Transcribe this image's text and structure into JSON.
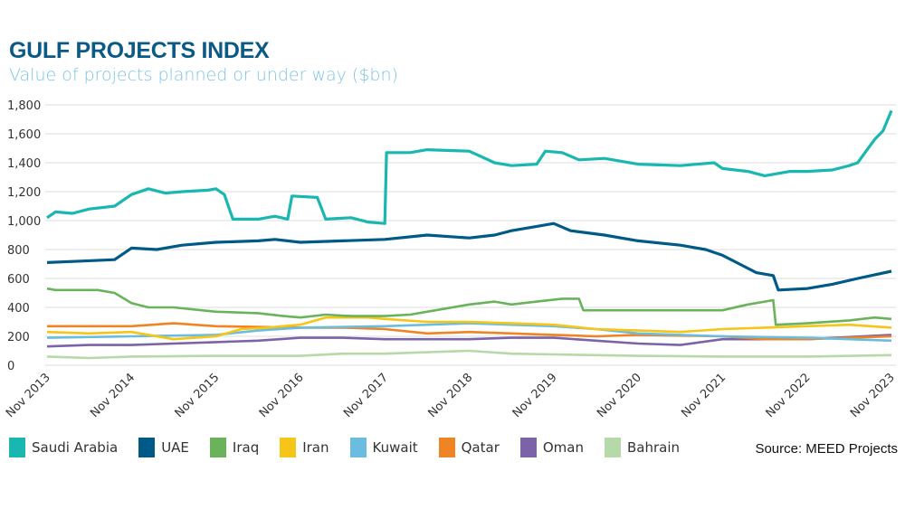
{
  "chart_data": {
    "type": "line",
    "title": "GULF PROJECTS INDEX",
    "subtitle": "Value of projects planned or under way ($bn)",
    "ylim": [
      0,
      1800
    ],
    "yticks": [
      0,
      200,
      400,
      600,
      800,
      1000,
      1200,
      1400,
      1600,
      1800
    ],
    "ytick_labels": [
      "0",
      "200",
      "400",
      "600",
      "800",
      "1,000",
      "1,200",
      "1,400",
      "1,600",
      "1,800"
    ],
    "xticks": [
      "Nov 2013",
      "Nov 2014",
      "Nov 2015",
      "Nov 2016",
      "Nov 2017",
      "Nov 2018",
      "Nov 2019",
      "Nov 2020",
      "Nov 2021",
      "Nov 2022",
      "Nov 2023"
    ],
    "x_unit": "years since Nov 2013",
    "grid": true,
    "legend_position": "bottom",
    "source": "Source: MEED Projects",
    "series": [
      {
        "name": "Bahrain",
        "color": "#b5d9a8",
        "points": [
          [
            0,
            60
          ],
          [
            0.5,
            50
          ],
          [
            1,
            60
          ],
          [
            2,
            65
          ],
          [
            3,
            65
          ],
          [
            3.5,
            80
          ],
          [
            4,
            80
          ],
          [
            4.5,
            90
          ],
          [
            5,
            100
          ],
          [
            5.5,
            80
          ],
          [
            6,
            75
          ],
          [
            6.5,
            70
          ],
          [
            7,
            65
          ],
          [
            8,
            60
          ],
          [
            9,
            60
          ],
          [
            10,
            70
          ]
        ]
      },
      {
        "name": "Oman",
        "color": "#7b63a8",
        "points": [
          [
            0,
            130
          ],
          [
            0.5,
            140
          ],
          [
            1,
            140
          ],
          [
            1.5,
            150
          ],
          [
            2,
            160
          ],
          [
            2.5,
            170
          ],
          [
            3,
            190
          ],
          [
            3.5,
            190
          ],
          [
            4,
            180
          ],
          [
            5,
            180
          ],
          [
            5.5,
            190
          ],
          [
            6,
            190
          ],
          [
            6.5,
            170
          ],
          [
            7,
            150
          ],
          [
            7.5,
            140
          ],
          [
            8,
            180
          ],
          [
            9,
            180
          ],
          [
            10,
            210
          ]
        ]
      },
      {
        "name": "Qatar",
        "color": "#ee8424",
        "points": [
          [
            0,
            270
          ],
          [
            1,
            270
          ],
          [
            1.5,
            290
          ],
          [
            2,
            270
          ],
          [
            3,
            260
          ],
          [
            3.5,
            260
          ],
          [
            4,
            250
          ],
          [
            4.5,
            220
          ],
          [
            5,
            230
          ],
          [
            6,
            210
          ],
          [
            6.5,
            200
          ],
          [
            7,
            210
          ],
          [
            8,
            200
          ],
          [
            8.5,
            180
          ],
          [
            9,
            180
          ],
          [
            10,
            200
          ]
        ]
      },
      {
        "name": "Kuwait",
        "color": "#6bbde0",
        "points": [
          [
            0,
            190
          ],
          [
            1,
            200
          ],
          [
            2,
            210
          ],
          [
            2.5,
            240
          ],
          [
            3,
            260
          ],
          [
            4,
            270
          ],
          [
            4.5,
            280
          ],
          [
            5,
            290
          ],
          [
            5.5,
            280
          ],
          [
            6,
            270
          ],
          [
            6.5,
            250
          ],
          [
            7,
            220
          ],
          [
            8,
            200
          ],
          [
            9,
            190
          ],
          [
            10,
            170
          ]
        ]
      },
      {
        "name": "Iran",
        "color": "#f5c518",
        "points": [
          [
            0,
            230
          ],
          [
            0.5,
            220
          ],
          [
            1,
            230
          ],
          [
            1.5,
            180
          ],
          [
            2,
            200
          ],
          [
            2.3,
            250
          ],
          [
            2.6,
            260
          ],
          [
            3,
            280
          ],
          [
            3.3,
            330
          ],
          [
            3.8,
            330
          ],
          [
            4,
            320
          ],
          [
            4.5,
            300
          ],
          [
            5,
            300
          ],
          [
            5.5,
            290
          ],
          [
            6,
            280
          ],
          [
            6.5,
            250
          ],
          [
            7,
            240
          ],
          [
            7.5,
            230
          ],
          [
            8,
            250
          ],
          [
            8.5,
            260
          ],
          [
            9,
            270
          ],
          [
            9.5,
            280
          ],
          [
            10,
            260
          ]
        ]
      },
      {
        "name": "Iraq",
        "color": "#6ab35a",
        "points": [
          [
            0,
            530
          ],
          [
            0.1,
            520
          ],
          [
            0.6,
            520
          ],
          [
            0.8,
            500
          ],
          [
            1,
            430
          ],
          [
            1.2,
            400
          ],
          [
            1.5,
            400
          ],
          [
            2,
            370
          ],
          [
            2.5,
            360
          ],
          [
            2.8,
            340
          ],
          [
            3,
            330
          ],
          [
            3.3,
            350
          ],
          [
            3.6,
            340
          ],
          [
            4,
            340
          ],
          [
            4.3,
            350
          ],
          [
            4.6,
            380
          ],
          [
            5,
            420
          ],
          [
            5.3,
            440
          ],
          [
            5.5,
            420
          ],
          [
            5.8,
            440
          ],
          [
            6.1,
            460
          ],
          [
            6.3,
            460
          ],
          [
            6.35,
            380
          ],
          [
            7,
            380
          ],
          [
            7.5,
            380
          ],
          [
            8,
            380
          ],
          [
            8.3,
            420
          ],
          [
            8.6,
            450
          ],
          [
            8.63,
            280
          ],
          [
            9,
            290
          ],
          [
            9.5,
            310
          ],
          [
            9.8,
            330
          ],
          [
            10,
            320
          ]
        ]
      },
      {
        "name": "UAE",
        "color": "#005a87",
        "points": [
          [
            0,
            710
          ],
          [
            0.4,
            720
          ],
          [
            0.8,
            730
          ],
          [
            1,
            810
          ],
          [
            1.3,
            800
          ],
          [
            1.6,
            830
          ],
          [
            2,
            850
          ],
          [
            2.5,
            860
          ],
          [
            2.7,
            870
          ],
          [
            3,
            850
          ],
          [
            3.5,
            860
          ],
          [
            4,
            870
          ],
          [
            4.5,
            900
          ],
          [
            5,
            880
          ],
          [
            5.3,
            900
          ],
          [
            5.5,
            930
          ],
          [
            5.8,
            960
          ],
          [
            6,
            980
          ],
          [
            6.2,
            930
          ],
          [
            6.6,
            900
          ],
          [
            7,
            860
          ],
          [
            7.5,
            830
          ],
          [
            7.8,
            800
          ],
          [
            8,
            760
          ],
          [
            8.2,
            700
          ],
          [
            8.4,
            640
          ],
          [
            8.6,
            620
          ],
          [
            8.66,
            520
          ],
          [
            9,
            530
          ],
          [
            9.3,
            560
          ],
          [
            9.6,
            600
          ],
          [
            10,
            650
          ]
        ]
      },
      {
        "name": "Saudi Arabia",
        "color": "#1ab7b0",
        "points": [
          [
            0,
            1020
          ],
          [
            0.1,
            1060
          ],
          [
            0.3,
            1050
          ],
          [
            0.5,
            1080
          ],
          [
            0.8,
            1100
          ],
          [
            1,
            1180
          ],
          [
            1.2,
            1220
          ],
          [
            1.4,
            1190
          ],
          [
            1.6,
            1200
          ],
          [
            1.9,
            1210
          ],
          [
            2,
            1220
          ],
          [
            2.1,
            1180
          ],
          [
            2.2,
            1010
          ],
          [
            2.5,
            1010
          ],
          [
            2.7,
            1030
          ],
          [
            2.85,
            1010
          ],
          [
            2.9,
            1170
          ],
          [
            3.2,
            1160
          ],
          [
            3.3,
            1010
          ],
          [
            3.6,
            1020
          ],
          [
            3.8,
            990
          ],
          [
            4,
            980
          ],
          [
            4.02,
            1470
          ],
          [
            4.3,
            1470
          ],
          [
            4.5,
            1490
          ],
          [
            5,
            1480
          ],
          [
            5.3,
            1400
          ],
          [
            5.5,
            1380
          ],
          [
            5.8,
            1390
          ],
          [
            5.9,
            1480
          ],
          [
            6.1,
            1470
          ],
          [
            6.3,
            1420
          ],
          [
            6.6,
            1430
          ],
          [
            7,
            1390
          ],
          [
            7.5,
            1380
          ],
          [
            7.9,
            1400
          ],
          [
            8,
            1360
          ],
          [
            8.3,
            1340
          ],
          [
            8.5,
            1310
          ],
          [
            8.8,
            1340
          ],
          [
            9,
            1340
          ],
          [
            9.3,
            1350
          ],
          [
            9.5,
            1380
          ],
          [
            9.6,
            1400
          ],
          [
            9.7,
            1480
          ],
          [
            9.8,
            1560
          ],
          [
            9.9,
            1620
          ],
          [
            10,
            1760
          ]
        ]
      }
    ],
    "legend": [
      {
        "name": "Saudi Arabia",
        "color": "#1ab7b0"
      },
      {
        "name": "UAE",
        "color": "#005a87"
      },
      {
        "name": "Iraq",
        "color": "#6ab35a"
      },
      {
        "name": "Iran",
        "color": "#f5c518"
      },
      {
        "name": "Kuwait",
        "color": "#6bbde0"
      },
      {
        "name": "Qatar",
        "color": "#ee8424"
      },
      {
        "name": "Oman",
        "color": "#7b63a8"
      },
      {
        "name": "Bahrain",
        "color": "#b5d9a8"
      }
    ]
  }
}
